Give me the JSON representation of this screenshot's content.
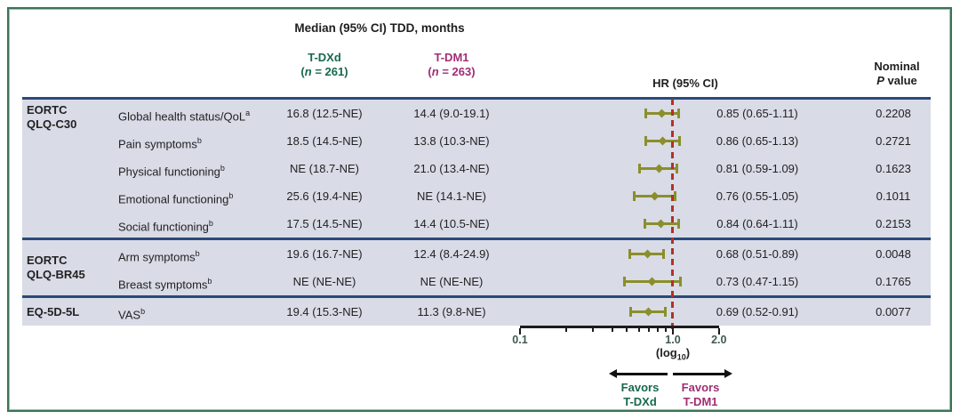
{
  "title": "Median (95% CI) TDD, months",
  "columns": {
    "tdxd": {
      "name": "T-DXd",
      "n_label": "(n = 261)"
    },
    "tdm1": {
      "name": "T-DM1",
      "n_label": "(n = 263)"
    },
    "hr_header": "HR (95% CI)",
    "p_header_line1": "Nominal",
    "p_header_line2": "P value"
  },
  "chart_data": {
    "type": "forest",
    "axis": {
      "scale": "log10",
      "label": "(log10)",
      "reference_line": 1.0,
      "min": 0.1,
      "max": 2.0,
      "minor_ticks": [
        0.1,
        0.2,
        0.3,
        0.4,
        0.5,
        0.6,
        0.7,
        0.8,
        0.9,
        1.0,
        2.0
      ],
      "tick_labels": [
        {
          "text": "0.1",
          "value": 0.1
        },
        {
          "text": "1.0",
          "value": 1.0
        },
        {
          "text": "2.0",
          "value": 2.0
        }
      ]
    },
    "sections": [
      {
        "group": [
          "EORTC",
          "QLQ-C30"
        ],
        "rows": [
          {
            "label": "Global health status/QoL",
            "sup": "a",
            "tdxd": "16.8 (12.5-NE)",
            "tdm1": "14.4 (9.0-19.1)",
            "hr": 0.85,
            "lo": 0.65,
            "hi": 1.11,
            "hr_text": "0.85 (0.65-1.11)",
            "p": "0.2208"
          },
          {
            "label": "Pain symptoms",
            "sup": "b",
            "tdxd": "18.5 (14.5-NE)",
            "tdm1": "13.8 (10.3-NE)",
            "hr": 0.86,
            "lo": 0.65,
            "hi": 1.13,
            "hr_text": "0.86 (0.65-1.13)",
            "p": "0.2721"
          },
          {
            "label": "Physical functioning",
            "sup": "b",
            "tdxd": "NE (18.7-NE)",
            "tdm1": "21.0 (13.4-NE)",
            "hr": 0.81,
            "lo": 0.59,
            "hi": 1.09,
            "hr_text": "0.81 (0.59-1.09)",
            "p": "0.1623"
          },
          {
            "label": "Emotional functioning",
            "sup": "b",
            "tdxd": "25.6 (19.4-NE)",
            "tdm1": "NE (14.1-NE)",
            "hr": 0.76,
            "lo": 0.55,
            "hi": 1.05,
            "hr_text": "0.76 (0.55-1.05)",
            "p": "0.1011"
          },
          {
            "label": "Social functioning",
            "sup": "b",
            "tdxd": "17.5 (14.5-NE)",
            "tdm1": "14.4 (10.5-NE)",
            "hr": 0.84,
            "lo": 0.64,
            "hi": 1.11,
            "hr_text": "0.84 (0.64-1.11)",
            "p": "0.2153"
          }
        ]
      },
      {
        "group": [
          "EORTC",
          "QLQ-BR45"
        ],
        "rows": [
          {
            "label": "Arm symptoms",
            "sup": "b",
            "tdxd": "19.6 (16.7-NE)",
            "tdm1": "12.4 (8.4-24.9)",
            "hr": 0.68,
            "lo": 0.51,
            "hi": 0.89,
            "hr_text": "0.68 (0.51-0.89)",
            "p": "0.0048"
          },
          {
            "label": "Breast symptoms",
            "sup": "b",
            "tdxd": "NE (NE-NE)",
            "tdm1": "NE (NE-NE)",
            "hr": 0.73,
            "lo": 0.47,
            "hi": 1.15,
            "hr_text": "0.73 (0.47-1.15)",
            "p": "0.1765"
          }
        ]
      },
      {
        "group": [
          "EQ-5D-5L"
        ],
        "rows": [
          {
            "label": "VAS",
            "sup": "b",
            "tdxd": "19.4 (15.3-NE)",
            "tdm1": "11.3 (9.8-NE)",
            "hr": 0.69,
            "lo": 0.52,
            "hi": 0.91,
            "hr_text": "0.69 (0.52-0.91)",
            "p": "0.0077"
          }
        ]
      }
    ]
  },
  "legend": {
    "left": {
      "line1": "Favors",
      "line2": "T-DXd"
    },
    "right": {
      "line1": "Favors",
      "line2": "T-DM1"
    }
  },
  "colors": {
    "tdxd_green": "#17694d",
    "tdm1_magenta": "#a02d74",
    "marker_olive": "#8a8f2c",
    "reference_red": "#b33025",
    "separator_navy": "#2a4a7a",
    "row_background": "#d9dbe7",
    "figure_border_green": "#3a7457",
    "axis_label": "#3f5a4e"
  }
}
